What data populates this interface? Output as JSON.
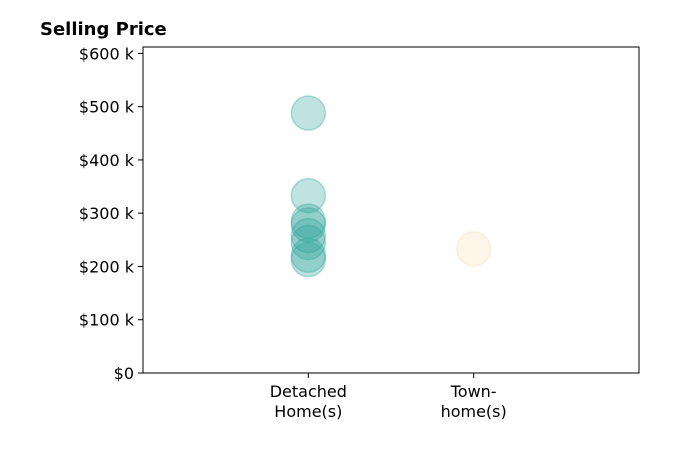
{
  "chart_data": {
    "type": "scatter",
    "title": "Selling Price",
    "xlabel": "",
    "ylabel": "",
    "categories": [
      "Detached\nHome(s)",
      "Town-\nhome(s)"
    ],
    "xlim": [
      -1,
      2
    ],
    "ylim": [
      0,
      612000
    ],
    "y_ticks": [
      0,
      100000,
      200000,
      300000,
      400000,
      500000,
      600000
    ],
    "y_tick_labels": [
      "$0",
      "$100 k",
      "$200 k",
      "$300 k",
      "$400 k",
      "$500 k",
      "$600 k"
    ],
    "grid": false,
    "series": [
      {
        "category_index": 0,
        "color": "#2aa198",
        "values": [
          488000,
          333000,
          285000,
          278000,
          258000,
          245000,
          221000,
          213000
        ]
      },
      {
        "category_index": 1,
        "color": "#f5deb3",
        "values": [
          233000
        ]
      }
    ]
  }
}
